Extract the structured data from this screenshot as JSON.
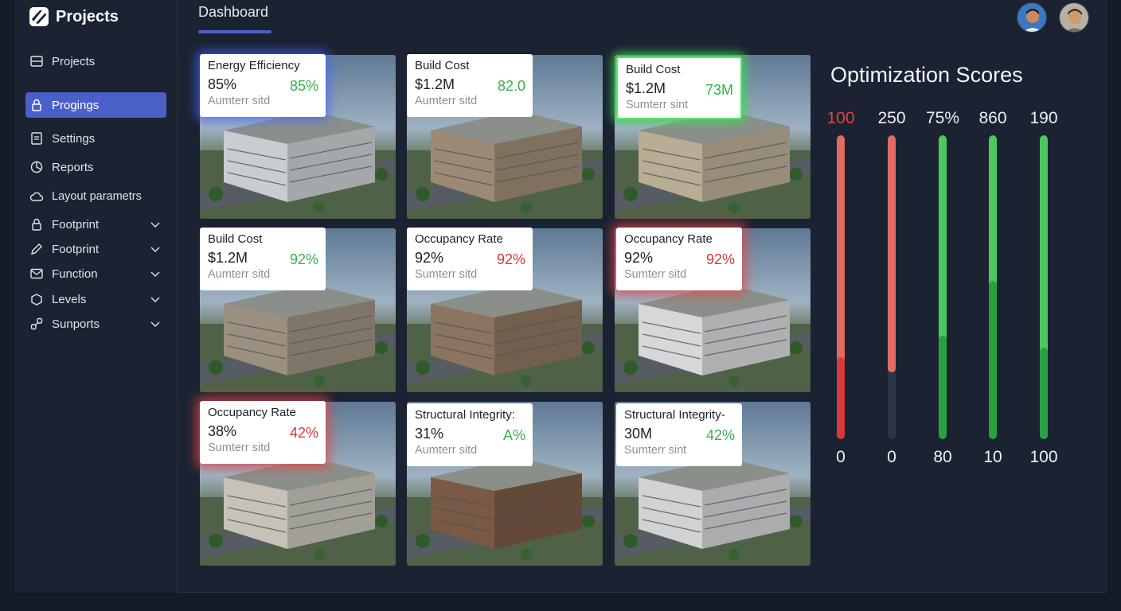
{
  "sidebar": {
    "brand": "Projects",
    "items": [
      {
        "label": "Projects"
      },
      {
        "label": "Progings"
      },
      {
        "label": "Settings"
      },
      {
        "label": "Reports"
      }
    ],
    "section_label": "Layout parametrs",
    "params": [
      {
        "label": "Footprint"
      },
      {
        "label": "Footprint"
      },
      {
        "label": "Function"
      },
      {
        "label": "Levels"
      },
      {
        "label": "Sunports"
      }
    ]
  },
  "header": {
    "tab": "Dashboard"
  },
  "cards": [
    {
      "title": "Energy Efficiency",
      "value": "85%",
      "delta": "85%",
      "sub": "Aumterr sitd",
      "delta_color": "#34b24a"
    },
    {
      "title": "Build Cost",
      "value": "$1.2M",
      "delta": "82.0",
      "sub": "Aumterr sitd",
      "delta_color": "#34b24a"
    },
    {
      "title": "Build Cost",
      "value": "$1.2M",
      "delta": "73M",
      "sub": "Sumterr sint",
      "delta_color": "#34b24a"
    },
    {
      "title": "Build Cost",
      "value": "$1.2M",
      "delta": "92%",
      "sub": "Aumterr sitd",
      "delta_color": "#34b24a"
    },
    {
      "title": "Occupancy Rate",
      "value": "92%",
      "delta": "92%",
      "sub": "Sumterr sitd",
      "delta_color": "#d8343a"
    },
    {
      "title": "Occupancy Rate",
      "value": "92%",
      "delta": "92%",
      "sub": "Sumterr sitd",
      "delta_color": "#d8343a"
    },
    {
      "title": "Occupancy Rate",
      "value": "38%",
      "delta": "42%",
      "sub": "Sumterr sitd",
      "delta_color": "#d8343a"
    },
    {
      "title": "Structural Integrity:",
      "value": "31%",
      "delta": "A%",
      "sub": "Aumterr sitd",
      "delta_color": "#34b24a"
    },
    {
      "title": "Structural Integrity-",
      "value": "30M",
      "delta": "42%",
      "sub": "Sumterr sint",
      "delta_color": "#34b24a"
    }
  ],
  "optimization": {
    "title": "Optimization Scores",
    "bars": [
      {
        "top": "100",
        "bottom": "0",
        "top_color": "#e0443e",
        "fill": 0.27,
        "fill_color": "#d63a3a",
        "upper_fill": 1.0,
        "upper_color": "#e26a62"
      },
      {
        "top": "250",
        "bottom": "0",
        "top_color": "#eef1f5",
        "fill": 0.0,
        "fill_color": "#d63a3a",
        "upper_fill": 0.78,
        "upper_color": "#e26a62"
      },
      {
        "top": "75%",
        "bottom": "80",
        "top_color": "#eef1f5",
        "fill": 0.34,
        "fill_color": "#29a044",
        "upper_fill": 1.0,
        "upper_color": "#4cc95e"
      },
      {
        "top": "860",
        "bottom": "10",
        "top_color": "#eef1f5",
        "fill": 0.52,
        "fill_color": "#29a044",
        "upper_fill": 1.0,
        "upper_color": "#4cc95e"
      },
      {
        "top": "190",
        "bottom": "100",
        "top_color": "#eef1f5",
        "fill": 0.3,
        "fill_color": "#29a044",
        "upper_fill": 1.0,
        "upper_color": "#4cc95e"
      }
    ]
  }
}
